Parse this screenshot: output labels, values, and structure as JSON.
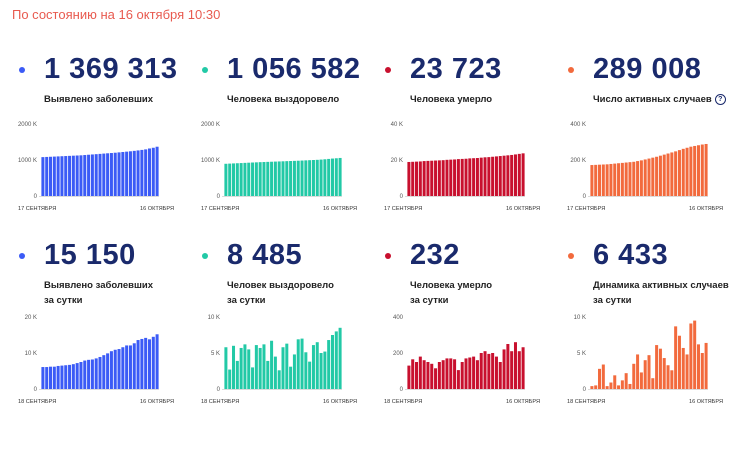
{
  "header": {
    "text": "По состоянию на 16 октября 10:30"
  },
  "cards": [
    {
      "value": "1 369 313",
      "label_line1": "Выявлено заболевших",
      "label_line2": "",
      "color": "#3b5bf6",
      "info": false,
      "yticks": [
        "2000 K",
        "1000 K",
        "0"
      ],
      "xstart": "17 СЕНТЯБРЯ",
      "xend": "16 ОКТЯБРЯ"
    },
    {
      "value": "1 056 582",
      "label_line1": "Человека выздоровело",
      "label_line2": "",
      "color": "#22c9a6",
      "info": false,
      "yticks": [
        "2000 K",
        "1000 K",
        "0"
      ],
      "xstart": "17 СЕНТЯБРЯ",
      "xend": "16 ОКТЯБРЯ"
    },
    {
      "value": "23 723",
      "label_line1": "Человека умерло",
      "label_line2": "",
      "color": "#c8102e",
      "info": false,
      "yticks": [
        "40 K",
        "20 K",
        "0"
      ],
      "xstart": "17 СЕНТЯБРЯ",
      "xend": "16 ОКТЯБРЯ"
    },
    {
      "value": "289 008",
      "label_line1": "Число активных случаев",
      "label_line2": "",
      "color": "#f26a3d",
      "info": true,
      "info_glyph": "?",
      "yticks": [
        "400 K",
        "200 K",
        "0"
      ],
      "xstart": "17 СЕНТЯБРЯ",
      "xend": "16 ОКТЯБРЯ"
    },
    {
      "value": "15 150",
      "label_line1": "Выявлено заболевших",
      "label_line2": "за сутки",
      "color": "#3b5bf6",
      "info": false,
      "yticks": [
        "20 K",
        "10 K",
        "0"
      ],
      "xstart": "18 СЕНТЯБРЯ",
      "xend": "16 ОКТЯБРЯ"
    },
    {
      "value": "8 485",
      "label_line1": "Человек выздоровело",
      "label_line2": "за сутки",
      "color": "#22c9a6",
      "info": false,
      "yticks": [
        "10 K",
        "5 K",
        "0"
      ],
      "xstart": "18 СЕНТЯБРЯ",
      "xend": "16 ОКТЯБРЯ"
    },
    {
      "value": "232",
      "label_line1": "Человека умерло",
      "label_line2": "за сутки",
      "color": "#c8102e",
      "info": false,
      "yticks": [
        "400",
        "200",
        "0"
      ],
      "xstart": "18 СЕНТЯБРЯ",
      "xend": "16 ОКТЯБРЯ"
    },
    {
      "value": "6 433",
      "label_line1": "Динамика активных случаев",
      "label_line2": "за сутки",
      "color": "#f26a3d",
      "info": false,
      "yticks": [
        "10 K",
        "5 K",
        "0"
      ],
      "xstart": "18 СЕНТЯБРЯ",
      "xend": "16 ОКТЯБРЯ"
    }
  ],
  "chart_data": [
    {
      "type": "bar",
      "ylim": [
        0,
        2000
      ],
      "x_range": [
        "17 СЕНТЯБРЯ",
        "16 ОКТЯБРЯ"
      ],
      "values": [
        1080,
        1085,
        1090,
        1095,
        1100,
        1105,
        1110,
        1115,
        1120,
        1125,
        1130,
        1138,
        1146,
        1154,
        1162,
        1170,
        1178,
        1186,
        1194,
        1202,
        1212,
        1222,
        1232,
        1242,
        1254,
        1266,
        1280,
        1295,
        1320,
        1340,
        1369
      ]
    },
    {
      "type": "bar",
      "ylim": [
        0,
        2000
      ],
      "x_range": [
        "17 СЕНТЯБРЯ",
        "16 ОКТЯБРЯ"
      ],
      "values": [
        895,
        900,
        905,
        910,
        915,
        920,
        925,
        930,
        935,
        940,
        944,
        948,
        952,
        956,
        960,
        964,
        968,
        972,
        976,
        980,
        985,
        990,
        995,
        1000,
        1005,
        1012,
        1020,
        1030,
        1040,
        1048,
        1057
      ]
    },
    {
      "type": "bar",
      "ylim": [
        0,
        40
      ],
      "x_range": [
        "17 СЕНТЯБРЯ",
        "16 ОКТЯБРЯ"
      ],
      "values": [
        18.9,
        19.0,
        19.1,
        19.2,
        19.4,
        19.5,
        19.6,
        19.7,
        19.8,
        19.9,
        20.1,
        20.2,
        20.3,
        20.5,
        20.6,
        20.7,
        20.9,
        21.0,
        21.1,
        21.3,
        21.5,
        21.6,
        21.8,
        22.0,
        22.2,
        22.4,
        22.6,
        22.8,
        23.1,
        23.4,
        23.7
      ]
    },
    {
      "type": "bar",
      "ylim": [
        0,
        400
      ],
      "x_range": [
        "17 СЕНТЯБРЯ",
        "16 ОКТЯБРЯ"
      ],
      "values": [
        172,
        173,
        174,
        175,
        176,
        178,
        180,
        182,
        184,
        186,
        188,
        190,
        194,
        198,
        203,
        208,
        213,
        218,
        224,
        230,
        236,
        242,
        248,
        255,
        262,
        268,
        274,
        278,
        282,
        286,
        289
      ]
    },
    {
      "type": "bar",
      "ylim": [
        0,
        20
      ],
      "x_range": [
        "18 СЕНТЯБРЯ",
        "16 ОКТЯБРЯ"
      ],
      "values": [
        6.1,
        6.1,
        6.2,
        6.2,
        6.4,
        6.5,
        6.6,
        6.7,
        6.9,
        7.2,
        7.5,
        7.9,
        8.1,
        8.2,
        8.5,
        8.9,
        9.4,
        9.9,
        10.5,
        10.9,
        11.1,
        11.6,
        12.1,
        12.1,
        12.7,
        13.6,
        13.9,
        14.2,
        13.8,
        14.5,
        15.2
      ]
    },
    {
      "type": "bar",
      "ylim": [
        0,
        10
      ],
      "x_range": [
        "18 СЕНТЯБРЯ",
        "16 ОКТЯБРЯ"
      ],
      "values": [
        5.8,
        2.7,
        6.0,
        3.9,
        5.7,
        6.2,
        5.5,
        3.0,
        6.1,
        5.7,
        6.2,
        3.9,
        6.7,
        4.5,
        2.6,
        5.8,
        6.3,
        3.1,
        4.8,
        6.9,
        7.0,
        5.1,
        3.8,
        6.1,
        6.5,
        5.0,
        5.2,
        6.8,
        7.5,
        8.0,
        8.5
      ]
    },
    {
      "type": "bar",
      "ylim": [
        0,
        400
      ],
      "x_range": [
        "18 СЕНТЯБРЯ",
        "16 ОКТЯБРЯ"
      ],
      "values": [
        130,
        165,
        150,
        180,
        160,
        150,
        140,
        115,
        150,
        160,
        170,
        170,
        165,
        105,
        150,
        170,
        175,
        180,
        160,
        200,
        210,
        195,
        200,
        180,
        150,
        220,
        250,
        210,
        260,
        210,
        232
      ]
    },
    {
      "type": "bar",
      "ylim": [
        0,
        10
      ],
      "x_range": [
        "18 СЕНТЯБРЯ",
        "16 ОКТЯБРЯ"
      ],
      "values": [
        0.4,
        0.5,
        2.8,
        3.4,
        0.4,
        0.9,
        1.9,
        0.5,
        1.2,
        2.2,
        0.7,
        3.5,
        4.8,
        2.3,
        4.0,
        4.7,
        1.5,
        6.1,
        5.6,
        4.3,
        3.3,
        2.6,
        8.7,
        7.4,
        5.7,
        4.8,
        9.1,
        9.5,
        6.2,
        5.0,
        6.4
      ]
    }
  ]
}
